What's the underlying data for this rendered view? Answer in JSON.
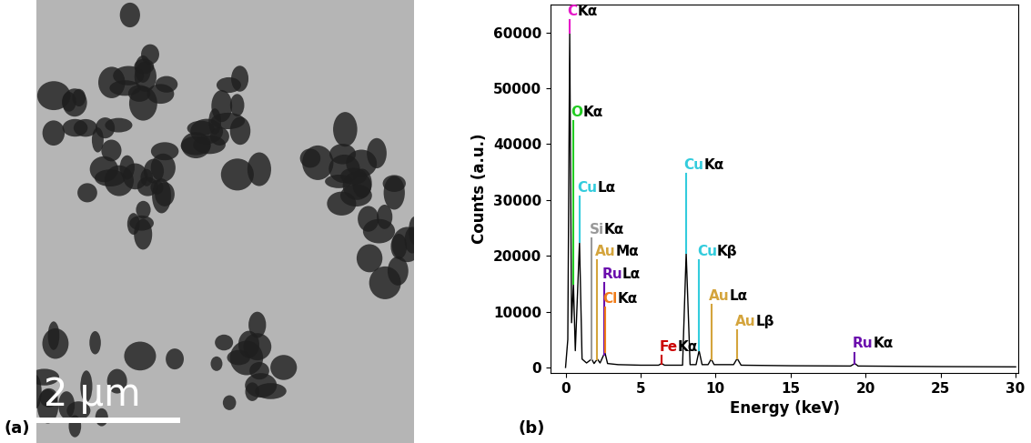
{
  "panel_labels": [
    "(a)",
    "(b)"
  ],
  "image": {
    "scale_bar": "2 µm"
  },
  "chart_data": {
    "type": "line",
    "x_label": "Energy (keV)",
    "y_label": "Counts (a.u.)",
    "color": "#000000",
    "x": [
      0,
      0.15,
      0.277,
      0.4,
      0.525,
      0.65,
      0.93,
      1.1,
      1.4,
      1.74,
      1.9,
      2.12,
      2.3,
      2.62,
      2.8,
      3.5,
      5,
      6.2,
      6.4,
      6.6,
      7.8,
      8.04,
      8.3,
      8.7,
      8.9,
      9.1,
      9.5,
      9.71,
      9.9,
      11.2,
      11.44,
      11.7,
      15,
      19.0,
      19.28,
      19.5,
      25,
      30
    ],
    "values": [
      0,
      5000,
      60000,
      8000,
      15000,
      3000,
      22500,
      1500,
      800,
      1500,
      700,
      1500,
      800,
      2700,
      700,
      500,
      400,
      400,
      700,
      400,
      400,
      20500,
      500,
      500,
      3000,
      500,
      500,
      1500,
      500,
      500,
      1600,
      400,
      300,
      250,
      700,
      250,
      150,
      100
    ],
    "xlim": [
      -1,
      30.2
    ],
    "ylim": [
      -1000,
      65000
    ],
    "xticks": [
      0,
      5,
      10,
      15,
      20,
      25,
      30
    ],
    "yticks": [
      0,
      10000,
      20000,
      30000,
      40000,
      50000,
      60000
    ],
    "annotations": [
      {
        "element": "C",
        "line": "Kα",
        "color": "#e619c8",
        "x": 0.277,
        "y": 62500
      },
      {
        "element": "O",
        "line": "Kα",
        "color": "#22cc22",
        "x": 0.525,
        "y": 44500
      },
      {
        "element": "Cu",
        "line": "Lα",
        "color": "#33ccdd",
        "x": 0.93,
        "y": 31000
      },
      {
        "element": "Si",
        "line": "Kα",
        "color": "#999999",
        "x": 1.74,
        "y": 23500
      },
      {
        "element": "Au",
        "line": "Mα",
        "color": "#d4a43c",
        "x": 2.12,
        "y": 19500
      },
      {
        "element": "Ru",
        "line": "Lα",
        "color": "#6a0dad",
        "x": 2.56,
        "y": 15500
      },
      {
        "element": "Cl",
        "line": "Kα",
        "color": "#f07c1a",
        "x": 2.62,
        "y": 11000
      },
      {
        "element": "Fe",
        "line": "Kα",
        "color": "#cc0000",
        "x": 6.4,
        "y": 2500
      },
      {
        "element": "Cu",
        "line": "Kα",
        "color": "#33ccdd",
        "x": 8.04,
        "y": 35000
      },
      {
        "element": "Cu",
        "line": "Kβ",
        "color": "#33ccdd",
        "x": 8.9,
        "y": 19500
      },
      {
        "element": "Au",
        "line": "Lα",
        "color": "#d4a43c",
        "x": 9.71,
        "y": 11500
      },
      {
        "element": "Au",
        "line": "Lβ",
        "color": "#d4a43c",
        "x": 11.44,
        "y": 7000
      },
      {
        "element": "Ru",
        "line": "Kα",
        "color": "#6a0dad",
        "x": 19.28,
        "y": 3000
      }
    ]
  }
}
